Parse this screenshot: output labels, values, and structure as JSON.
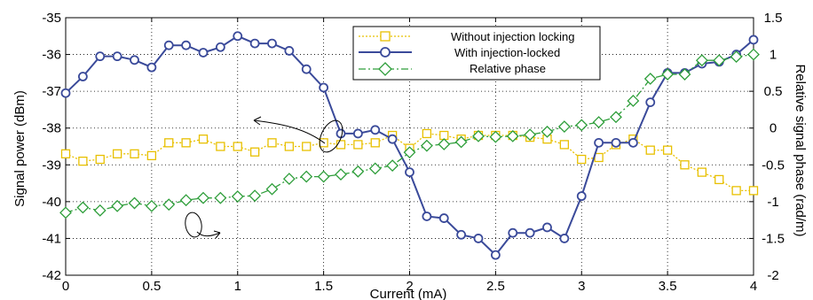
{
  "chart_data": {
    "type": "line",
    "xlabel": "Current (mA)",
    "ylabel_left": "Signal power (dBm)",
    "ylabel_right": "Relative signal phase (rad/m)",
    "xlim": [
      0,
      4
    ],
    "ylim_left": [
      -42,
      -35
    ],
    "ylim_right": [
      -2,
      1.5
    ],
    "x_ticks": [
      "0",
      "0.5",
      "1",
      "1.5",
      "2",
      "2.5",
      "3",
      "3.5",
      "4"
    ],
    "y_ticks_left": [
      "-42",
      "-41",
      "-40",
      "-39",
      "-38",
      "-37",
      "-36",
      "-35"
    ],
    "y_ticks_right": [
      "-2",
      "-1.5",
      "-1",
      "-0.5",
      "0",
      "0.5",
      "1",
      "1.5"
    ],
    "grid": true,
    "legend_position": "top-center",
    "series": [
      {
        "name": "Without injection locking",
        "axis": "left",
        "color": "#E8C000",
        "marker": "square",
        "line": "dotted",
        "x": [
          0,
          0.1,
          0.2,
          0.3,
          0.4,
          0.5,
          0.6,
          0.7,
          0.8,
          0.9,
          1.0,
          1.1,
          1.2,
          1.3,
          1.4,
          1.5,
          1.6,
          1.7,
          1.8,
          1.9,
          2.0,
          2.1,
          2.2,
          2.3,
          2.4,
          2.5,
          2.6,
          2.7,
          2.8,
          2.9,
          3.0,
          3.1,
          3.2,
          3.3,
          3.4,
          3.5,
          3.6,
          3.7,
          3.8,
          3.9,
          4.0
        ],
        "values": [
          -38.7,
          -38.9,
          -38.85,
          -38.7,
          -38.7,
          -38.75,
          -38.4,
          -38.4,
          -38.3,
          -38.5,
          -38.5,
          -38.65,
          -38.4,
          -38.5,
          -38.5,
          -38.4,
          -38.45,
          -38.45,
          -38.4,
          -38.2,
          -38.55,
          -38.15,
          -38.2,
          -38.3,
          -38.2,
          -38.2,
          -38.2,
          -38.25,
          -38.3,
          -38.45,
          -38.85,
          -38.8,
          -38.45,
          -38.3,
          -38.6,
          -38.6,
          -39.0,
          -39.2,
          -39.4,
          -39.7,
          -39.7
        ]
      },
      {
        "name": "With injection-locked",
        "axis": "left",
        "color": "#3A4A9A",
        "marker": "circle",
        "line": "solid",
        "x": [
          0,
          0.1,
          0.2,
          0.3,
          0.4,
          0.5,
          0.6,
          0.7,
          0.8,
          0.9,
          1.0,
          1.1,
          1.2,
          1.3,
          1.4,
          1.5,
          1.6,
          1.7,
          1.8,
          1.9,
          2.0,
          2.1,
          2.2,
          2.3,
          2.4,
          2.5,
          2.6,
          2.7,
          2.8,
          2.9,
          3.0,
          3.1,
          3.2,
          3.3,
          3.4,
          3.5,
          3.6,
          3.7,
          3.8,
          3.9,
          4.0
        ],
        "values": [
          -37.05,
          -36.6,
          -36.05,
          -36.05,
          -36.15,
          -36.35,
          -35.75,
          -35.75,
          -35.95,
          -35.8,
          -35.5,
          -35.7,
          -35.7,
          -35.9,
          -36.4,
          -36.9,
          -38.15,
          -38.15,
          -38.05,
          -38.3,
          -39.2,
          -40.4,
          -40.45,
          -40.9,
          -41.0,
          -41.45,
          -40.85,
          -40.85,
          -40.7,
          -41.0,
          -39.85,
          -38.4,
          -38.4,
          -38.4,
          -37.3,
          -36.5,
          -36.5,
          -36.25,
          -36.2,
          -36.0,
          -35.6
        ]
      },
      {
        "name": "Relative phase",
        "axis": "right",
        "color": "#2E9E3A",
        "marker": "diamond",
        "line": "dashdot",
        "x": [
          0,
          0.1,
          0.2,
          0.3,
          0.4,
          0.5,
          0.6,
          0.7,
          0.8,
          0.9,
          1.0,
          1.1,
          1.2,
          1.3,
          1.4,
          1.5,
          1.6,
          1.7,
          1.8,
          1.9,
          2.0,
          2.1,
          2.2,
          2.3,
          2.4,
          2.5,
          2.6,
          2.7,
          2.8,
          2.9,
          3.0,
          3.1,
          3.2,
          3.3,
          3.4,
          3.5,
          3.6,
          3.7,
          3.8,
          3.9,
          4.0
        ],
        "values": [
          -1.15,
          -1.08,
          -1.12,
          -1.06,
          -1.02,
          -1.06,
          -1.04,
          -0.98,
          -0.95,
          -0.95,
          -0.93,
          -0.92,
          -0.83,
          -0.69,
          -0.66,
          -0.66,
          -0.63,
          -0.59,
          -0.55,
          -0.51,
          -0.33,
          -0.24,
          -0.22,
          -0.19,
          -0.11,
          -0.12,
          -0.11,
          -0.09,
          -0.05,
          0.02,
          0.04,
          0.08,
          0.15,
          0.37,
          0.67,
          0.73,
          0.73,
          0.92,
          0.92,
          0.97,
          1.0
        ]
      }
    ]
  }
}
